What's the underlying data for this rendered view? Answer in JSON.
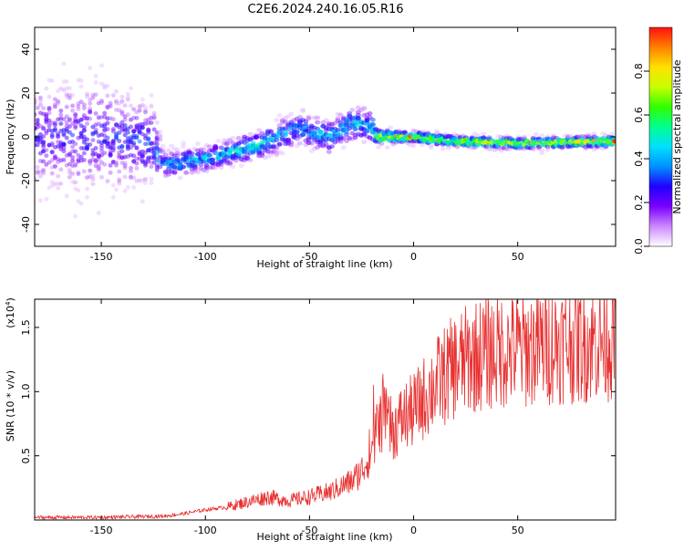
{
  "title": "C2E6.2024.240.16.05.R16",
  "chart_data": [
    {
      "type": "heatmap",
      "xlabel": "Height of straight line (km)",
      "ylabel": "Frequency (Hz)",
      "xlim": [
        -182,
        97
      ],
      "ylim": [
        -50,
        50
      ],
      "x_ticks": [
        -150,
        -100,
        -50,
        0,
        50
      ],
      "y_ticks": [
        -40,
        -20,
        0,
        20,
        40
      ],
      "colorbar": {
        "label": "Normalized spectral amplitude",
        "range": [
          0,
          1
        ],
        "ticks": [
          "0.0",
          "0.2",
          "0.4",
          "0.6",
          "0.8"
        ],
        "colors": [
          "#ffffff",
          "#cc88ff",
          "#7b00ff",
          "#2000ff",
          "#0090ff",
          "#00e0ff",
          "#00ff90",
          "#30ff00",
          "#c8ff00",
          "#ffe000",
          "#ff8000",
          "#ff1010"
        ]
      },
      "ridge": [
        {
          "x": -182,
          "y": 0,
          "amp": 0.28,
          "spread": 30
        },
        {
          "x": -150,
          "y": 0,
          "amp": 0.3,
          "spread": 30
        },
        {
          "x": -125,
          "y": -3,
          "amp": 0.35,
          "spread": 22
        },
        {
          "x": -120,
          "y": -13,
          "amp": 0.42,
          "spread": 8
        },
        {
          "x": -100,
          "y": -10,
          "amp": 0.5,
          "spread": 7
        },
        {
          "x": -75,
          "y": -4,
          "amp": 0.5,
          "spread": 8
        },
        {
          "x": -55,
          "y": 4,
          "amp": 0.45,
          "spread": 9
        },
        {
          "x": -40,
          "y": 0,
          "amp": 0.45,
          "spread": 10
        },
        {
          "x": -30,
          "y": 6,
          "amp": 0.45,
          "spread": 10
        },
        {
          "x": -20,
          "y": 5,
          "amp": 0.5,
          "spread": 9
        },
        {
          "x": -18,
          "y": 0,
          "amp": 0.8,
          "spread": 4
        },
        {
          "x": 0,
          "y": 0,
          "amp": 0.85,
          "spread": 3
        },
        {
          "x": 20,
          "y": -2,
          "amp": 0.8,
          "spread": 3
        },
        {
          "x": 50,
          "y": -3,
          "amp": 0.82,
          "spread": 3
        },
        {
          "x": 97,
          "y": -2,
          "amp": 0.85,
          "spread": 3
        }
      ]
    },
    {
      "type": "line",
      "xlabel": "Height of straight line (km)",
      "ylabel": "SNR (10 * v/v)",
      "y_multiplier": "(x10",
      "y_multiplier_exp": "4",
      "y_multiplier_close": ")",
      "xlim": [
        -182,
        97
      ],
      "ylim": [
        0,
        1.72
      ],
      "x_ticks": [
        -150,
        -100,
        -50,
        0,
        50
      ],
      "y_ticks": [
        "0.5",
        "1.0",
        "1.5"
      ],
      "series": [
        {
          "color": "#e83030",
          "x": [
            -182,
            -150,
            -120,
            -110,
            -100,
            -90,
            -80,
            -70,
            -60,
            -50,
            -40,
            -30,
            -25,
            -20,
            -18,
            -15,
            -10,
            -5,
            0,
            5,
            10,
            20,
            30,
            40,
            50,
            60,
            70,
            80,
            90,
            97
          ],
          "y": [
            0.02,
            0.02,
            0.03,
            0.05,
            0.08,
            0.1,
            0.14,
            0.18,
            0.15,
            0.18,
            0.22,
            0.3,
            0.38,
            0.55,
            0.7,
            0.8,
            0.7,
            0.8,
            0.85,
            0.95,
            1.05,
            1.2,
            1.28,
            1.32,
            1.32,
            1.35,
            1.38,
            1.38,
            1.4,
            1.42
          ]
        }
      ]
    }
  ]
}
